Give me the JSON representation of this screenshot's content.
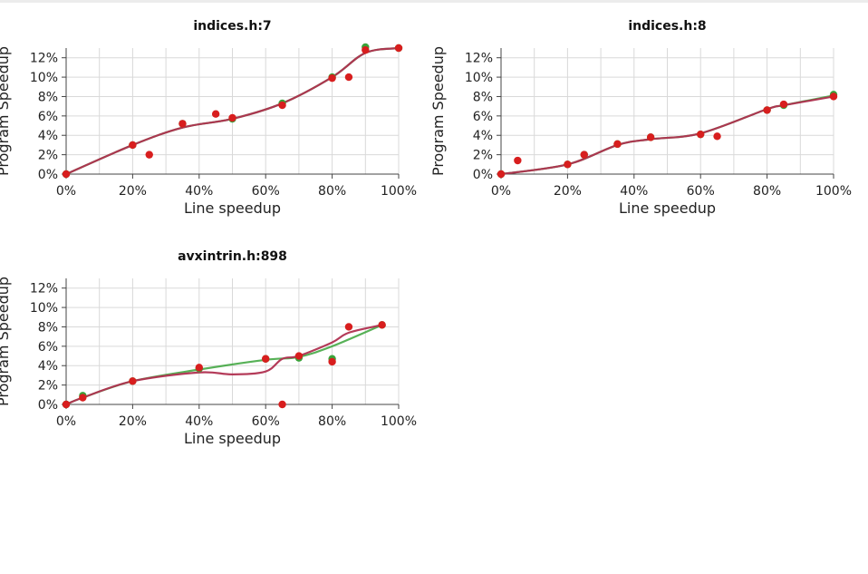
{
  "chart_data": [
    {
      "type": "scatter",
      "title": "indices.h:7",
      "xlabel": "Line speedup",
      "ylabel": "Program Speedup",
      "xlim": [
        0,
        1
      ],
      "ylim": [
        0,
        0.13
      ],
      "x_ticks": [
        "0%",
        "20%",
        "40%",
        "60%",
        "80%",
        "100%"
      ],
      "y_ticks": [
        "0%",
        "2%",
        "4%",
        "6%",
        "8%",
        "10%",
        "12%"
      ],
      "series": [
        {
          "color": "#3aa33a",
          "points": [
            [
              0,
              0
            ],
            [
              0.2,
              0.03
            ],
            [
              0.35,
              0.052
            ],
            [
              0.5,
              0.057
            ],
            [
              0.65,
              0.073
            ],
            [
              0.8,
              0.1
            ],
            [
              0.9,
              0.131
            ],
            [
              1.0,
              0.13
            ]
          ],
          "trend": [
            [
              0,
              0
            ],
            [
              0.2,
              0.03
            ],
            [
              0.35,
              0.048
            ],
            [
              0.5,
              0.057
            ],
            [
              0.65,
              0.073
            ],
            [
              0.8,
              0.1
            ],
            [
              0.9,
              0.125
            ],
            [
              1.0,
              0.13
            ]
          ]
        },
        {
          "color": "#d81e1e",
          "line_color": "#b03050",
          "points": [
            [
              0,
              0
            ],
            [
              0.2,
              0.03
            ],
            [
              0.25,
              0.02
            ],
            [
              0.35,
              0.052
            ],
            [
              0.45,
              0.062
            ],
            [
              0.5,
              0.058
            ],
            [
              0.65,
              0.071
            ],
            [
              0.8,
              0.099
            ],
            [
              0.85,
              0.1
            ],
            [
              0.9,
              0.128
            ],
            [
              1.0,
              0.13
            ]
          ],
          "trend": [
            [
              0,
              0
            ],
            [
              0.2,
              0.03
            ],
            [
              0.35,
              0.048
            ],
            [
              0.5,
              0.057
            ],
            [
              0.65,
              0.073
            ],
            [
              0.8,
              0.1
            ],
            [
              0.9,
              0.125
            ],
            [
              1.0,
              0.13
            ]
          ]
        }
      ]
    },
    {
      "type": "scatter",
      "title": "indices.h:8",
      "xlabel": "Line speedup",
      "ylabel": "Program Speedup",
      "xlim": [
        0,
        1
      ],
      "ylim": [
        0,
        0.13
      ],
      "x_ticks": [
        "0%",
        "20%",
        "40%",
        "60%",
        "80%",
        "100%"
      ],
      "y_ticks": [
        "0%",
        "2%",
        "4%",
        "6%",
        "8%",
        "10%",
        "12%"
      ],
      "series": [
        {
          "color": "#3aa33a",
          "points": [
            [
              0,
              0
            ],
            [
              0.2,
              0.01
            ],
            [
              0.25,
              0.02
            ],
            [
              0.35,
              0.031
            ],
            [
              0.45,
              0.038
            ],
            [
              0.6,
              0.041
            ],
            [
              0.8,
              0.066
            ],
            [
              0.85,
              0.071
            ],
            [
              1.0,
              0.082
            ]
          ],
          "trend": [
            [
              0,
              0
            ],
            [
              0.2,
              0.01
            ],
            [
              0.35,
              0.03
            ],
            [
              0.45,
              0.036
            ],
            [
              0.6,
              0.042
            ],
            [
              0.8,
              0.067
            ],
            [
              0.85,
              0.071
            ],
            [
              1.0,
              0.081
            ]
          ]
        },
        {
          "color": "#d81e1e",
          "line_color": "#b03050",
          "points": [
            [
              0,
              0
            ],
            [
              0.05,
              0.014
            ],
            [
              0.2,
              0.01
            ],
            [
              0.25,
              0.02
            ],
            [
              0.35,
              0.031
            ],
            [
              0.45,
              0.038
            ],
            [
              0.6,
              0.041
            ],
            [
              0.65,
              0.039
            ],
            [
              0.8,
              0.066
            ],
            [
              0.85,
              0.072
            ],
            [
              1.0,
              0.08
            ]
          ],
          "trend": [
            [
              0,
              0
            ],
            [
              0.2,
              0.01
            ],
            [
              0.35,
              0.03
            ],
            [
              0.45,
              0.036
            ],
            [
              0.6,
              0.042
            ],
            [
              0.8,
              0.067
            ],
            [
              0.85,
              0.071
            ],
            [
              1.0,
              0.08
            ]
          ]
        }
      ]
    },
    {
      "type": "scatter",
      "title": "avxintrin.h:898",
      "xlabel": "Line speedup",
      "ylabel": "Program Speedup",
      "xlim": [
        0,
        1
      ],
      "ylim": [
        0,
        0.13
      ],
      "x_ticks": [
        "0%",
        "20%",
        "40%",
        "60%",
        "80%",
        "100%"
      ],
      "y_ticks": [
        "0%",
        "2%",
        "4%",
        "6%",
        "8%",
        "10%",
        "12%"
      ],
      "series": [
        {
          "color": "#3aa33a",
          "points": [
            [
              0,
              0
            ],
            [
              0.05,
              0.009
            ],
            [
              0.2,
              0.024
            ],
            [
              0.4,
              0.037
            ],
            [
              0.6,
              0.047
            ],
            [
              0.7,
              0.048
            ],
            [
              0.8,
              0.047
            ],
            [
              0.95,
              0.082
            ]
          ],
          "trend": [
            [
              0,
              0
            ],
            [
              0.05,
              0.007
            ],
            [
              0.2,
              0.024
            ],
            [
              0.4,
              0.036
            ],
            [
              0.6,
              0.046
            ],
            [
              0.7,
              0.049
            ],
            [
              0.8,
              0.06
            ],
            [
              0.95,
              0.082
            ]
          ]
        },
        {
          "color": "#d81e1e",
          "line_color": "#b03050",
          "points": [
            [
              0,
              0
            ],
            [
              0.05,
              0.007
            ],
            [
              0.2,
              0.024
            ],
            [
              0.4,
              0.038
            ],
            [
              0.6,
              0.047
            ],
            [
              0.65,
              0
            ],
            [
              0.7,
              0.05
            ],
            [
              0.8,
              0.044
            ],
            [
              0.85,
              0.08
            ],
            [
              0.95,
              0.082
            ]
          ],
          "trend": [
            [
              0,
              0
            ],
            [
              0.05,
              0.007
            ],
            [
              0.2,
              0.024
            ],
            [
              0.4,
              0.033
            ],
            [
              0.5,
              0.031
            ],
            [
              0.6,
              0.034
            ],
            [
              0.65,
              0.047
            ],
            [
              0.7,
              0.05
            ],
            [
              0.8,
              0.064
            ],
            [
              0.85,
              0.074
            ],
            [
              0.95,
              0.082
            ]
          ]
        }
      ]
    }
  ]
}
